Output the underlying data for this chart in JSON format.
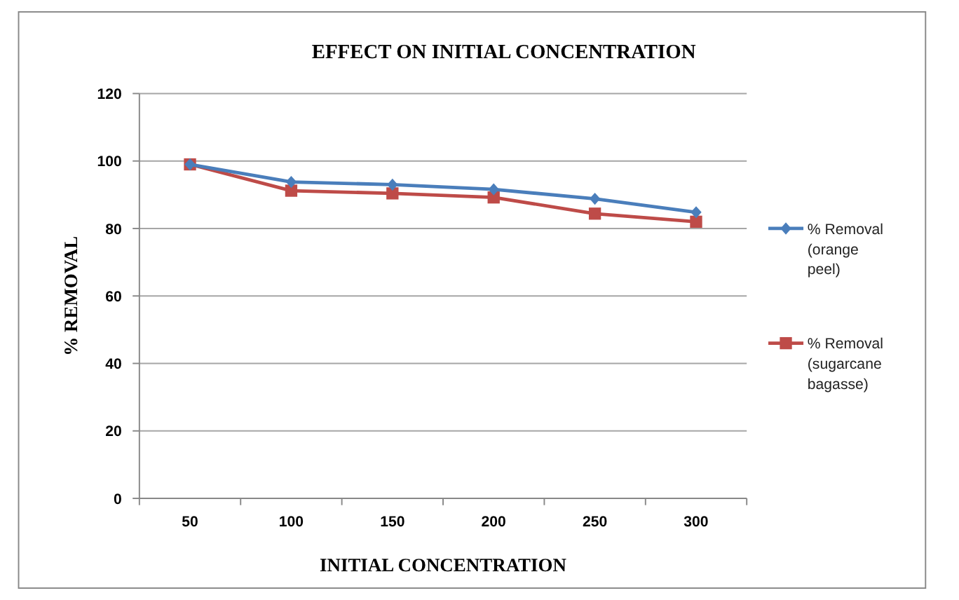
{
  "chart_data": {
    "type": "line",
    "title": "EFFECT ON INITIAL CONCENTRATION",
    "xlabel": "INITIAL CONCENTRATION",
    "ylabel": "% REMOVAL",
    "categories": [
      "50",
      "100",
      "150",
      "200",
      "250",
      "300"
    ],
    "series": [
      {
        "name": "% Removal (orange peel)",
        "color": "#4a7ebb",
        "marker": "diamond",
        "values": [
          99,
          93.8,
          93,
          91.6,
          88.8,
          84.8
        ]
      },
      {
        "name": "% Removal (sugarcane bagasse)",
        "color": "#be4b48",
        "marker": "square",
        "values": [
          99,
          91.2,
          90.4,
          89.2,
          84.4,
          82
        ]
      }
    ],
    "ylim": [
      0,
      120
    ],
    "yticks": [
      0,
      20,
      40,
      60,
      80,
      100,
      120
    ],
    "grid": "y",
    "legend": "right"
  }
}
